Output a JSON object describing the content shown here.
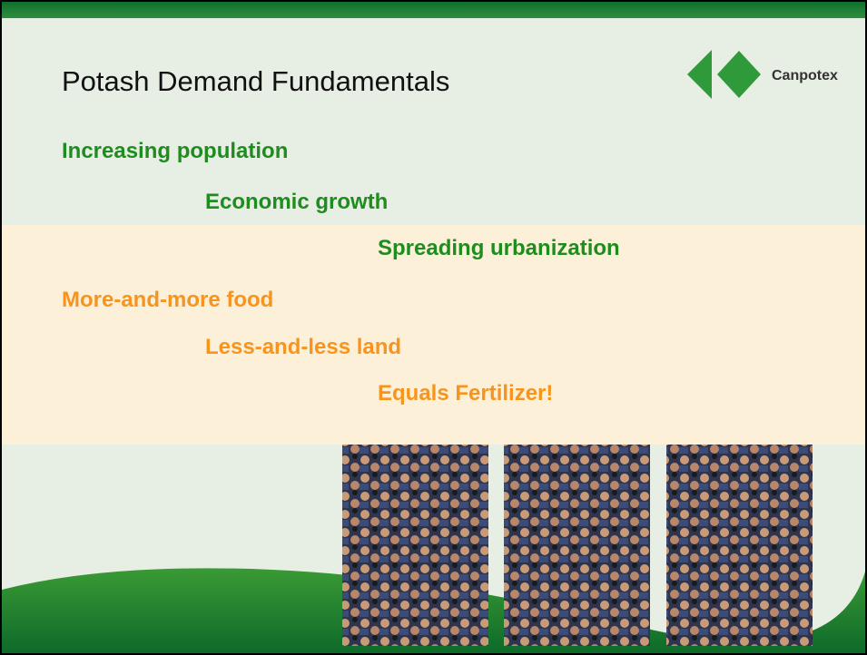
{
  "header": {
    "title": "Potash Demand Fundamentals",
    "logo": "Canpotex"
  },
  "points": [
    "Increasing population",
    "Economic growth",
    "Spreading urbanization",
    "More-and-more food",
    "Less-and-less land",
    "Equals Fertilizer!"
  ]
}
